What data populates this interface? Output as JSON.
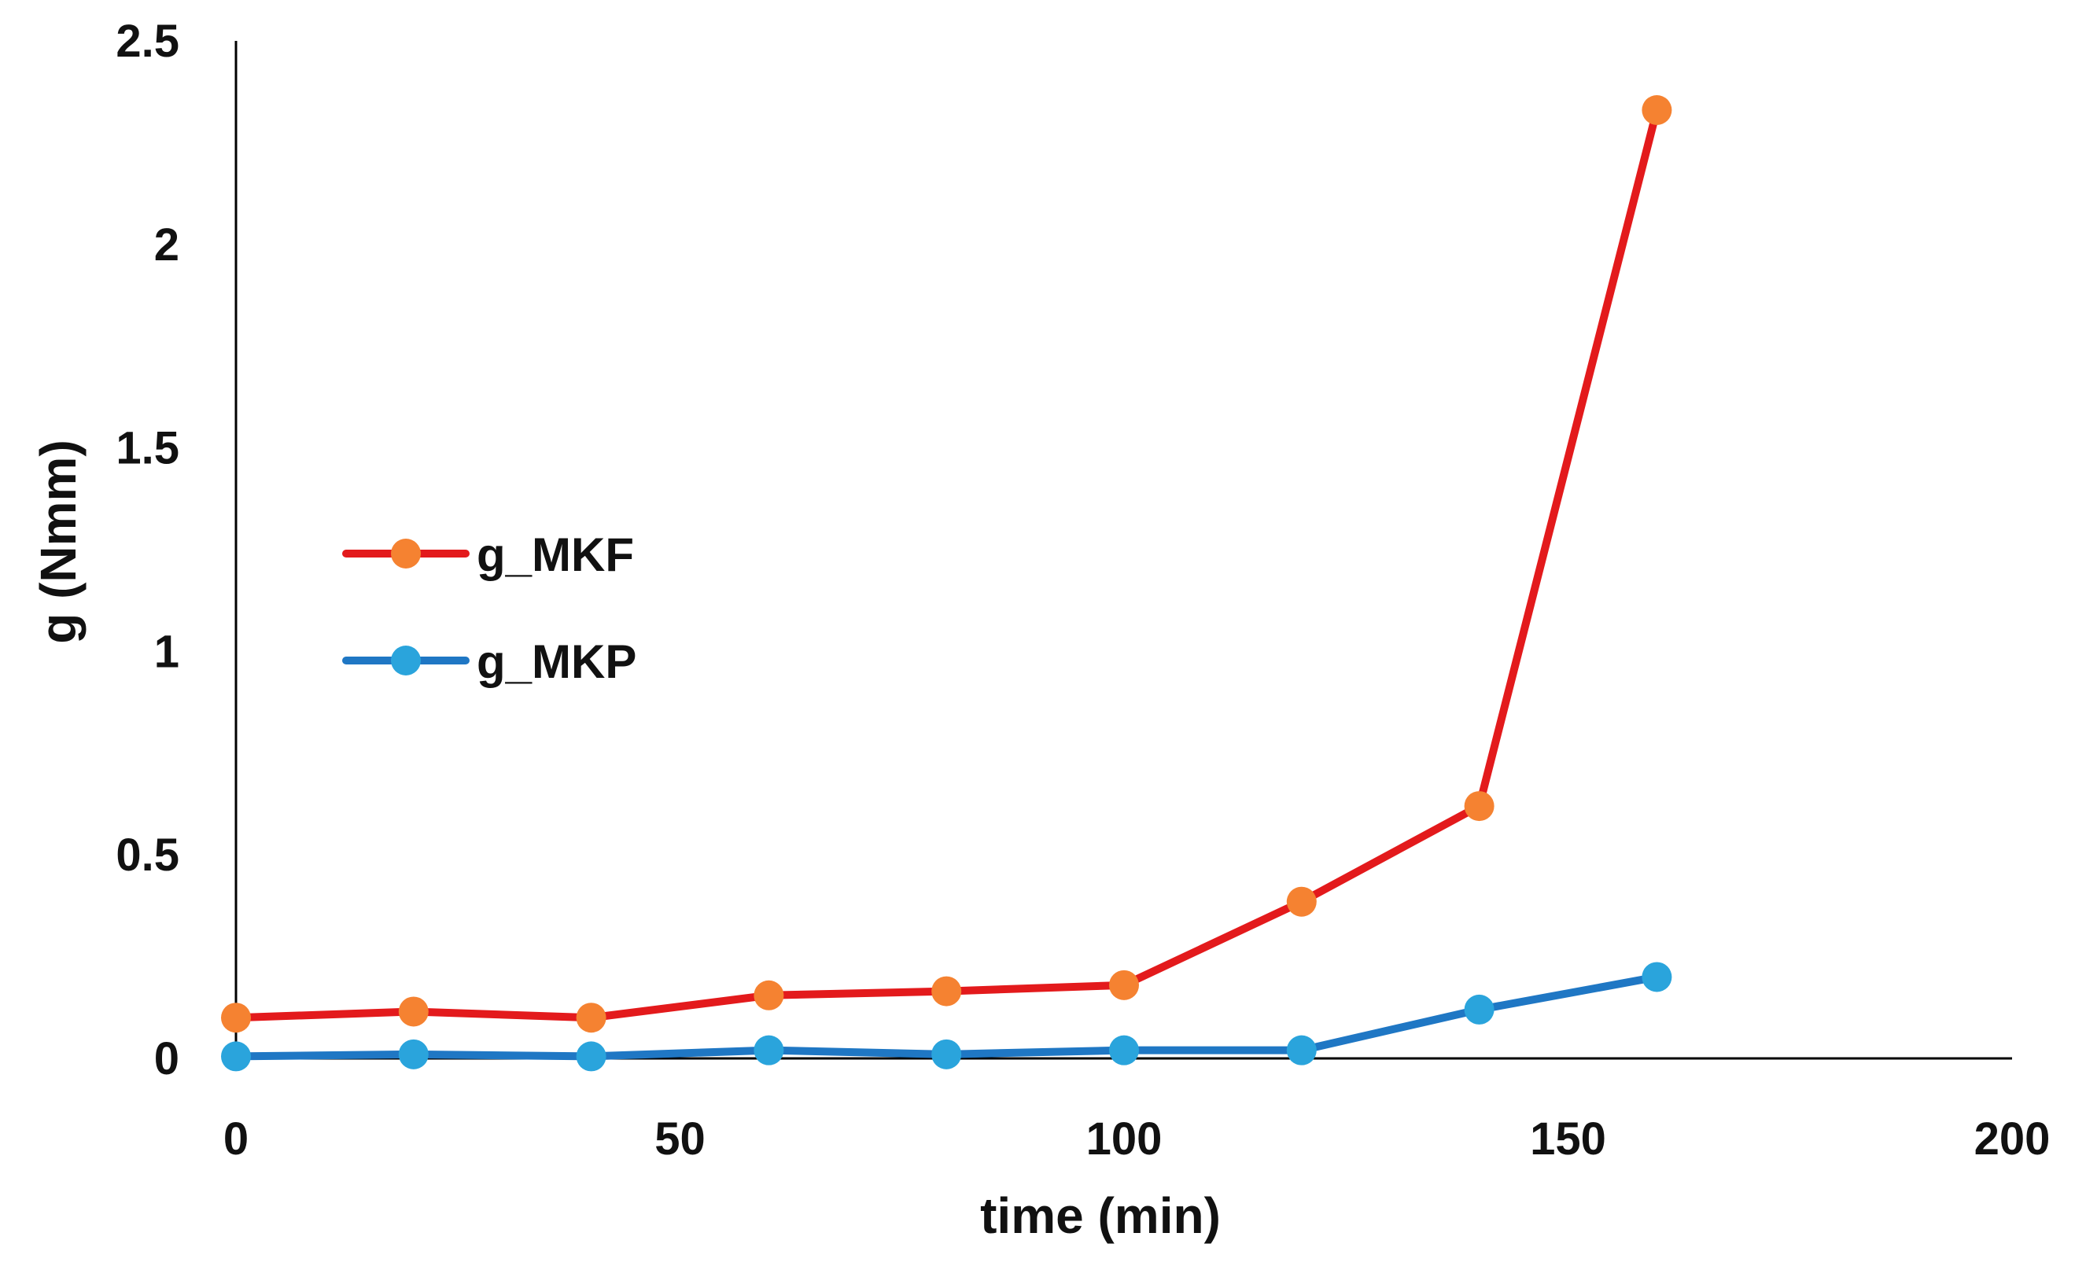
{
  "chart_data": {
    "type": "line",
    "title": "",
    "xlabel": "time (min)",
    "ylabel": "g (Nmm)",
    "xlim": [
      0,
      200
    ],
    "ylim": [
      0,
      2.5
    ],
    "xticks": [
      "0",
      "50",
      "100",
      "150",
      "200"
    ],
    "yticks": [
      "0",
      "0.5",
      "1",
      "1.5",
      "2",
      "2.5"
    ],
    "legend": "left-middle",
    "grid": false,
    "series": [
      {
        "name": "g_MKF",
        "line_color": "#e31a1c",
        "marker_color": "#f58231",
        "x": [
          0,
          20,
          40,
          60,
          80,
          100,
          120,
          140,
          160
        ],
        "y": [
          0.1,
          0.115,
          0.1,
          0.155,
          0.165,
          0.18,
          0.385,
          0.62,
          2.33
        ]
      },
      {
        "name": "g_MKP",
        "line_color": "#1f77c4",
        "marker_color": "#2aa4dc",
        "x": [
          0,
          20,
          40,
          60,
          80,
          100,
          120,
          140,
          160
        ],
        "y": [
          0.005,
          0.01,
          0.005,
          0.02,
          0.01,
          0.02,
          0.02,
          0.12,
          0.2
        ]
      }
    ]
  }
}
